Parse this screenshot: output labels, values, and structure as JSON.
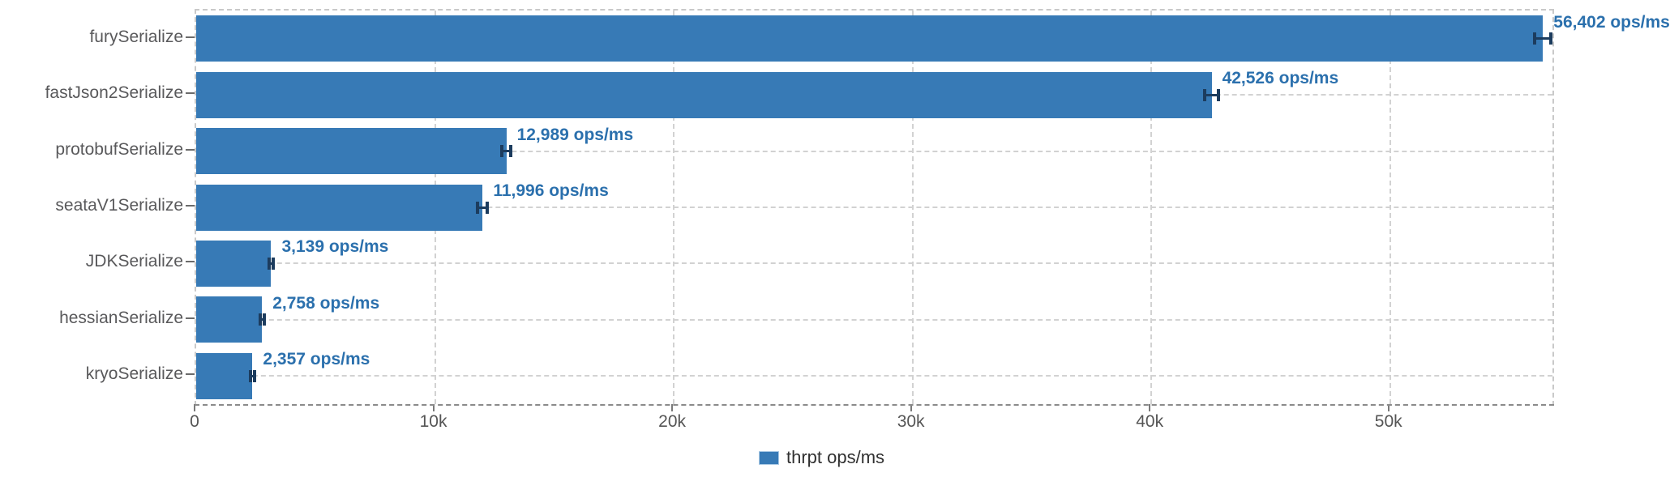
{
  "chart_data": {
    "type": "bar",
    "orientation": "horizontal",
    "title": "",
    "xlabel": "",
    "ylabel": "",
    "categories": [
      "furySerialize",
      "fastJson2Serialize",
      "protobufSerialize",
      "seataV1Serialize",
      "JDKSerialize",
      "hessianSerialize",
      "kryoSerialize"
    ],
    "series": [
      {
        "name": "thrpt ops/ms",
        "values": [
          56402,
          42526,
          12989,
          11996,
          3139,
          2758,
          2357
        ]
      }
    ],
    "value_labels": [
      "56,402 ops/ms",
      "42,526 ops/ms",
      "12,989 ops/ms",
      "11,996 ops/ms",
      "3,139 ops/ms",
      "2,758 ops/ms",
      "2,357 ops/ms"
    ],
    "error_margins": [
      340,
      300,
      200,
      200,
      90,
      80,
      80
    ],
    "x_axis": {
      "ticks": [
        0,
        10000,
        20000,
        30000,
        40000,
        50000
      ],
      "tick_labels": [
        "0",
        "10k",
        "20k",
        "30k",
        "40k",
        "50k"
      ],
      "max": 56800
    },
    "xlim": [
      0,
      56800
    ],
    "grid": "dashed",
    "legend_position": "bottom-center",
    "legend": [
      {
        "label": "thrpt ops/ms",
        "color": "#377ab6"
      }
    ],
    "colors": {
      "bar": "#377ab6",
      "value_label": "#2b70ad",
      "error_bar": "#1c3c5e",
      "axis_text": "#555555",
      "category_text": "#59595b",
      "gridline": "#d2d2d2",
      "plot_border": "#c9c9c9",
      "axis_line": "#8b8b8b",
      "legend_text": "#303030"
    }
  }
}
